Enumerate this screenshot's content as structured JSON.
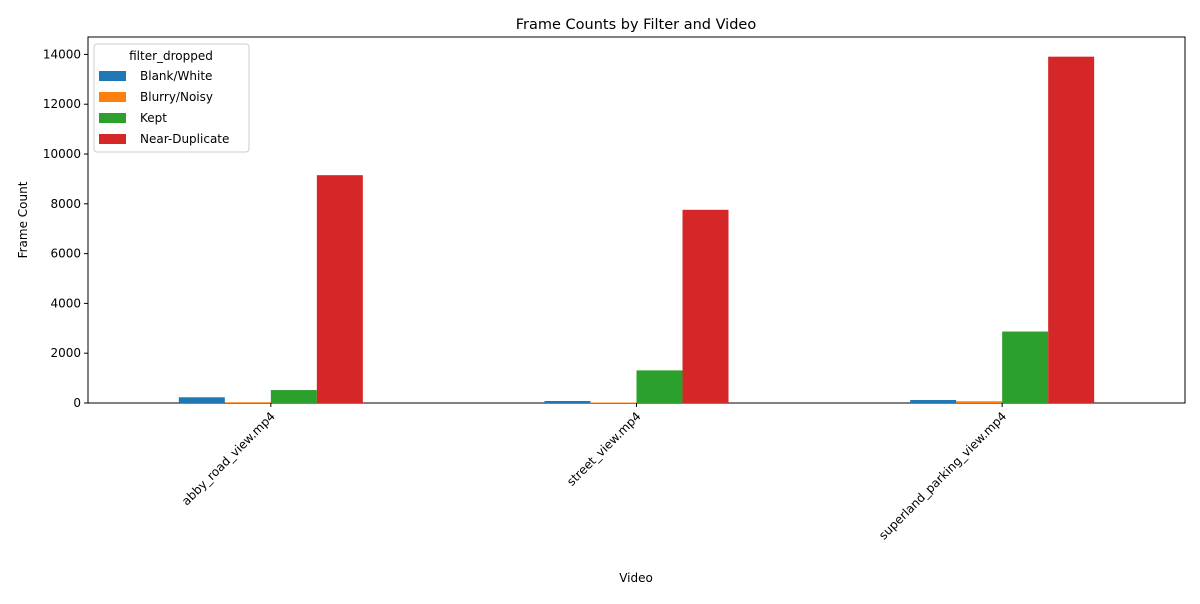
{
  "chart_data": {
    "type": "bar",
    "title": "Frame Counts by Filter and Video",
    "xlabel": "Video",
    "ylabel": "Frame Count",
    "categories": [
      "abby_road_view.mp4",
      "street_view.mp4",
      "superland_parking_view.mp4"
    ],
    "ylim": [
      0,
      14700
    ],
    "yticks": [
      0,
      2000,
      4000,
      6000,
      8000,
      10000,
      12000,
      14000
    ],
    "grid": false,
    "legend": {
      "title": "filter_dropped",
      "placement": "top-left"
    },
    "series": [
      {
        "name": "Blank/White",
        "color": "#1f77b4",
        "values": [
          230,
          80,
          120
        ]
      },
      {
        "name": "Blurry/Noisy",
        "color": "#ff7f0e",
        "values": [
          30,
          20,
          70
        ]
      },
      {
        "name": "Kept",
        "color": "#2ca02c",
        "values": [
          520,
          1310,
          2870
        ]
      },
      {
        "name": "Near-Duplicate",
        "color": "#d62728",
        "values": [
          9150,
          7760,
          13910
        ]
      }
    ]
  }
}
